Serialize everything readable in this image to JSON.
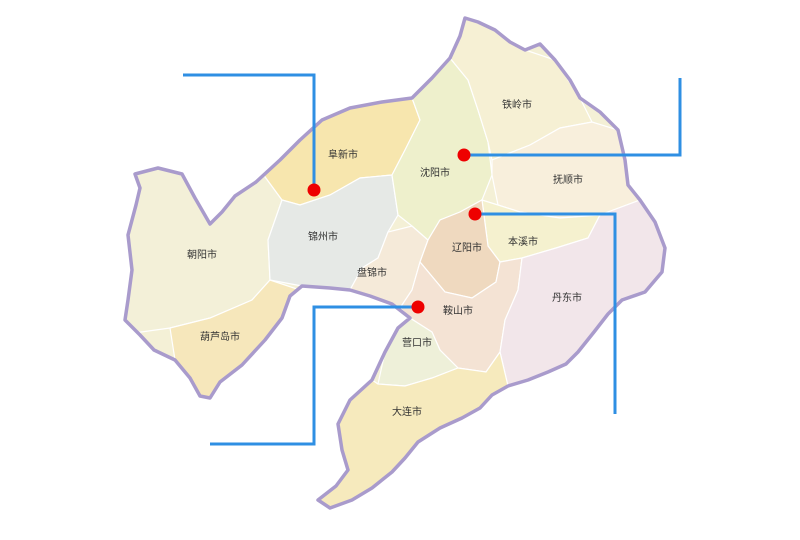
{
  "map": {
    "colors": {
      "outline": "#a99bcc",
      "connector": "#2f8fe3",
      "marker": "#ee0000",
      "region_default": "#f4f0d6"
    },
    "regions": [
      {
        "id": "chaoyang",
        "label": "朝阳市",
        "color": "#f3f0d8"
      },
      {
        "id": "huludao",
        "label": "葫芦岛市",
        "color": "#f6e7bb"
      },
      {
        "id": "fuxin",
        "label": "阜新市",
        "color": "#f7e6ae"
      },
      {
        "id": "jinzhou",
        "label": "锦州市",
        "color": "#e6e9e6"
      },
      {
        "id": "panjin",
        "label": "盘锦市",
        "color": "#f5ead9"
      },
      {
        "id": "shenyang",
        "label": "沈阳市",
        "color": "#eef0cc"
      },
      {
        "id": "tieling",
        "label": "铁岭市",
        "color": "#f6f0d4"
      },
      {
        "id": "fushun",
        "label": "抚顺市",
        "color": "#f8efdc"
      },
      {
        "id": "benxi",
        "label": "本溪市",
        "color": "#f5f1cf"
      },
      {
        "id": "liaoyang",
        "label": "辽阳市",
        "color": "#efd9bf"
      },
      {
        "id": "anshan",
        "label": "鞍山市",
        "color": "#f4e3d4"
      },
      {
        "id": "yingkou",
        "label": "营口市",
        "color": "#eef0d9"
      },
      {
        "id": "dandong",
        "label": "丹东市",
        "color": "#f2e6ea"
      },
      {
        "id": "dalian",
        "label": "大连市",
        "color": "#f6eabd"
      }
    ],
    "markers": [
      {
        "id": "marker-fuxin",
        "region": "fuxin"
      },
      {
        "id": "marker-shenyang",
        "region": "shenyang"
      },
      {
        "id": "marker-benxi",
        "region": "benxi"
      },
      {
        "id": "marker-anshan",
        "region": "anshan"
      }
    ]
  }
}
